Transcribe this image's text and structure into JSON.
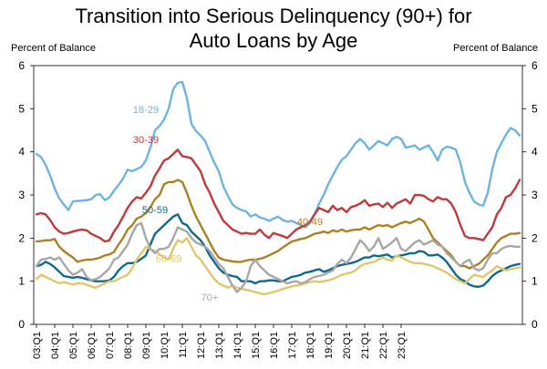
{
  "chart_data": {
    "type": "line",
    "title_line1": "Transition into Serious Delinquency (90+) for",
    "title_line2": "Auto Loans by Age",
    "ylabel_left": "Percent of Balance",
    "ylabel_right": "Percent of Balance",
    "ylim": [
      0,
      6
    ],
    "yticks": [
      0,
      1,
      2,
      3,
      4,
      5,
      6
    ],
    "x_start": "2003Q1",
    "x_end": "2023Q4",
    "xtick_labels": [
      "03:Q1",
      "04:Q1",
      "05:Q1",
      "06:Q1",
      "07:Q1",
      "08:Q1",
      "09:Q1",
      "10:Q1",
      "11:Q1",
      "12:Q1",
      "13:Q1",
      "14:Q1",
      "15:Q1",
      "16:Q1",
      "17:Q1",
      "18:Q1",
      "19:Q1",
      "20:Q1",
      "21:Q1",
      "22:Q1",
      "23:Q1"
    ],
    "grid": false,
    "series": [
      {
        "name": "18-29",
        "color": "#6CB4E4",
        "label_at": [
          "09:Q1",
          4.9
        ],
        "values": [
          3.95,
          3.88,
          3.7,
          3.45,
          3.15,
          2.92,
          2.78,
          2.65,
          2.85,
          2.86,
          2.87,
          2.88,
          2.9,
          3.0,
          3.02,
          2.88,
          2.94,
          3.1,
          3.23,
          3.38,
          3.59,
          3.55,
          3.6,
          3.65,
          3.8,
          4.1,
          4.5,
          4.6,
          4.75,
          5.0,
          5.45,
          5.6,
          5.62,
          5.25,
          4.65,
          4.48,
          4.38,
          4.25,
          4.0,
          3.75,
          3.55,
          3.2,
          2.98,
          2.78,
          2.7,
          2.65,
          2.62,
          2.5,
          2.55,
          2.48,
          2.45,
          2.4,
          2.45,
          2.5,
          2.42,
          2.38,
          2.4,
          2.35,
          2.3,
          2.25,
          2.35,
          2.55,
          2.8,
          3.0,
          3.25,
          3.45,
          3.65,
          3.82,
          3.9,
          4.05,
          4.2,
          4.3,
          4.2,
          4.05,
          4.15,
          4.25,
          4.2,
          4.15,
          4.3,
          4.35,
          4.3,
          4.1,
          4.12,
          4.15,
          4.05,
          4.1,
          4.15,
          4.0,
          3.8,
          4.05,
          4.12,
          4.1,
          4.05,
          3.75,
          3.3,
          3.05,
          2.85,
          2.78,
          2.75,
          3.05,
          3.6,
          4.0,
          4.2,
          4.4,
          4.55,
          4.5,
          4.38
        ]
      },
      {
        "name": "30-39",
        "color": "#C0393B",
        "label_at": [
          "09:Q1",
          4.2
        ],
        "values": [
          2.55,
          2.58,
          2.55,
          2.42,
          2.25,
          2.15,
          2.1,
          2.12,
          2.15,
          2.18,
          2.2,
          2.18,
          2.1,
          2.05,
          2.0,
          1.92,
          1.95,
          2.15,
          2.3,
          2.5,
          2.7,
          2.85,
          2.95,
          2.92,
          3.05,
          3.2,
          3.45,
          3.62,
          3.8,
          3.85,
          3.95,
          4.05,
          3.9,
          3.88,
          3.85,
          3.7,
          3.55,
          3.25,
          3.05,
          2.8,
          2.6,
          2.4,
          2.3,
          2.2,
          2.15,
          2.1,
          2.12,
          2.1,
          2.1,
          2.2,
          2.08,
          2.0,
          2.12,
          2.08,
          2.05,
          2.0,
          2.1,
          2.2,
          2.25,
          2.3,
          2.38,
          2.55,
          2.7,
          2.65,
          2.6,
          2.75,
          2.65,
          2.7,
          2.6,
          2.72,
          2.75,
          2.8,
          2.88,
          2.75,
          2.78,
          2.8,
          2.72,
          2.82,
          2.7,
          2.8,
          2.85,
          2.9,
          2.8,
          3.0,
          3.0,
          2.98,
          2.9,
          2.85,
          2.95,
          2.9,
          2.9,
          2.8,
          2.6,
          2.3,
          2.05,
          2.0,
          2.0,
          1.98,
          1.95,
          2.1,
          2.25,
          2.55,
          2.7,
          2.95,
          3.0,
          3.15,
          3.35
        ]
      },
      {
        "name": "40-49",
        "color": "#B08020",
        "label_at": [
          "18:Q1",
          2.3
        ],
        "values": [
          1.92,
          1.93,
          1.95,
          1.95,
          1.98,
          1.8,
          1.7,
          1.62,
          1.55,
          1.45,
          1.48,
          1.5,
          1.5,
          1.52,
          1.55,
          1.6,
          1.62,
          1.68,
          1.85,
          2.0,
          2.2,
          2.3,
          2.45,
          2.5,
          2.58,
          2.72,
          2.9,
          3.0,
          3.25,
          3.3,
          3.3,
          3.35,
          3.3,
          3.05,
          2.75,
          2.5,
          2.3,
          2.1,
          1.9,
          1.7,
          1.55,
          1.5,
          1.48,
          1.46,
          1.45,
          1.45,
          1.48,
          1.5,
          1.5,
          1.52,
          1.55,
          1.6,
          1.65,
          1.7,
          1.78,
          1.85,
          1.92,
          1.95,
          1.98,
          2.0,
          2.05,
          2.1,
          2.12,
          2.15,
          2.12,
          2.18,
          2.15,
          2.2,
          2.15,
          2.18,
          2.2,
          2.2,
          2.25,
          2.2,
          2.25,
          2.3,
          2.28,
          2.3,
          2.25,
          2.3,
          2.35,
          2.38,
          2.35,
          2.4,
          2.45,
          2.38,
          2.2,
          2.0,
          1.9,
          1.8,
          1.7,
          1.6,
          1.45,
          1.35,
          1.35,
          1.3,
          1.35,
          1.4,
          1.5,
          1.6,
          1.75,
          1.9,
          2.0,
          2.05,
          2.1,
          2.1,
          2.12
        ]
      },
      {
        "name": "50-59",
        "color": "#0E6A8F",
        "label_at": [
          "09:Q3",
          2.58
        ],
        "values": [
          1.35,
          1.38,
          1.45,
          1.4,
          1.32,
          1.22,
          1.12,
          1.1,
          1.08,
          1.1,
          1.08,
          1.05,
          1.02,
          1.0,
          1.0,
          1.0,
          1.02,
          1.1,
          1.25,
          1.35,
          1.42,
          1.42,
          1.45,
          1.52,
          1.6,
          1.85,
          2.1,
          2.2,
          2.3,
          2.4,
          2.5,
          2.55,
          2.35,
          2.3,
          2.15,
          2.05,
          1.95,
          1.8,
          1.6,
          1.45,
          1.3,
          1.2,
          1.15,
          1.12,
          1.1,
          1.0,
          1.0,
          1.0,
          0.95,
          1.0,
          1.0,
          1.02,
          1.02,
          1.0,
          1.0,
          1.05,
          1.1,
          1.12,
          1.15,
          1.2,
          1.22,
          1.25,
          1.28,
          1.22,
          1.25,
          1.3,
          1.35,
          1.38,
          1.4,
          1.42,
          1.45,
          1.5,
          1.55,
          1.55,
          1.6,
          1.58,
          1.6,
          1.62,
          1.55,
          1.58,
          1.6,
          1.62,
          1.65,
          1.65,
          1.7,
          1.68,
          1.6,
          1.6,
          1.62,
          1.55,
          1.45,
          1.3,
          1.15,
          1.05,
          1.0,
          0.92,
          0.88,
          0.87,
          0.9,
          1.0,
          1.12,
          1.2,
          1.25,
          1.3,
          1.35,
          1.38,
          1.4
        ]
      },
      {
        "name": "60-69",
        "color": "#E3C66B",
        "label_at": [
          "10:Q2",
          1.45
        ],
        "values": [
          1.05,
          1.15,
          1.1,
          1.05,
          1.0,
          0.95,
          0.98,
          0.95,
          0.92,
          0.95,
          0.95,
          0.92,
          0.88,
          0.85,
          0.9,
          0.95,
          1.0,
          1.0,
          1.05,
          1.1,
          1.15,
          1.3,
          1.5,
          1.65,
          1.8,
          1.75,
          1.7,
          1.62,
          1.55,
          1.5,
          1.75,
          1.95,
          1.9,
          2.0,
          1.8,
          1.6,
          1.5,
          1.35,
          1.2,
          1.05,
          0.95,
          0.9,
          0.85,
          0.9,
          0.85,
          0.82,
          0.8,
          0.78,
          0.75,
          0.72,
          0.7,
          0.72,
          0.75,
          0.78,
          0.82,
          0.85,
          0.88,
          0.9,
          0.92,
          0.95,
          0.98,
          1.0,
          0.98,
          1.0,
          1.02,
          1.05,
          1.1,
          1.15,
          1.18,
          1.2,
          1.25,
          1.35,
          1.4,
          1.42,
          1.45,
          1.5,
          1.55,
          1.5,
          1.48,
          1.6,
          1.55,
          1.5,
          1.45,
          1.42,
          1.42,
          1.4,
          1.38,
          1.35,
          1.3,
          1.25,
          1.2,
          1.12,
          1.05,
          1.0,
          0.95,
          1.05,
          1.15,
          1.12,
          1.1,
          1.18,
          1.25,
          1.35,
          1.3,
          1.25,
          1.28,
          1.3,
          1.32
        ]
      },
      {
        "name": "70+",
        "color": "#A7A7A7",
        "label_at": [
          "12:Q3",
          0.55
        ],
        "values": [
          1.35,
          1.5,
          1.52,
          1.55,
          1.5,
          1.55,
          1.4,
          1.25,
          1.15,
          1.2,
          1.28,
          1.1,
          1.02,
          1.05,
          1.1,
          1.2,
          1.3,
          1.5,
          1.55,
          1.7,
          1.85,
          2.1,
          2.3,
          2.35,
          2.0,
          1.75,
          1.65,
          1.75,
          1.75,
          1.8,
          2.0,
          2.25,
          2.2,
          2.15,
          2.0,
          1.9,
          1.85,
          1.8,
          1.7,
          1.55,
          1.4,
          1.3,
          1.1,
          0.9,
          0.75,
          0.85,
          1.0,
          1.35,
          1.5,
          1.35,
          1.25,
          1.15,
          1.1,
          1.05,
          1.0,
          0.95,
          0.98,
          1.0,
          0.95,
          0.98,
          1.05,
          1.1,
          1.12,
          1.15,
          1.2,
          1.25,
          1.4,
          1.5,
          1.42,
          1.55,
          1.75,
          1.95,
          1.85,
          1.7,
          1.8,
          2.0,
          1.75,
          1.82,
          1.9,
          2.0,
          1.75,
          1.7,
          1.8,
          1.9,
          1.95,
          1.85,
          1.9,
          1.95,
          1.85,
          1.8,
          1.65,
          1.55,
          1.45,
          1.35,
          1.45,
          1.5,
          1.3,
          1.25,
          1.3,
          1.5,
          1.65,
          1.65,
          1.75,
          1.8,
          1.82,
          1.8,
          1.8
        ]
      }
    ]
  }
}
